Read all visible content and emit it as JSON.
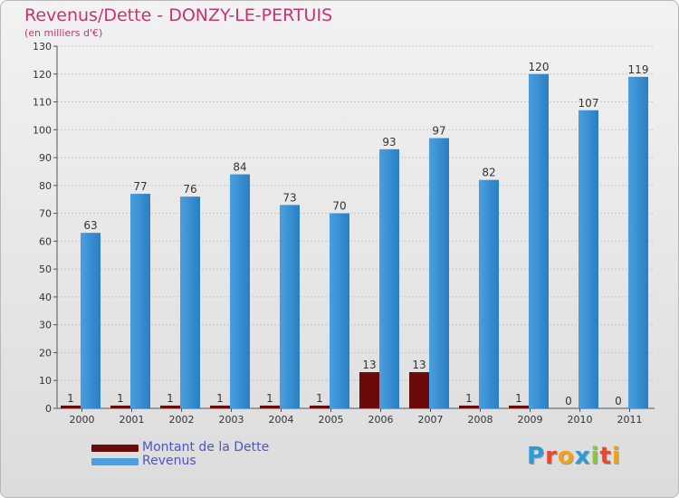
{
  "title": "Revenus/Dette - DONZY-LE-PERTUIS",
  "subtitle": "(en milliers d'€)",
  "logo": {
    "text": "Proxiti",
    "letters": [
      {
        "char": "P",
        "color": "#2f9bd6"
      },
      {
        "char": "r",
        "color": "#e8482f"
      },
      {
        "char": "o",
        "color": "#f0a31a"
      },
      {
        "char": "x",
        "color": "#2f9bd6"
      },
      {
        "char": "i",
        "color": "#8cc63e"
      },
      {
        "char": "t",
        "color": "#e8482f"
      },
      {
        "char": "i",
        "color": "#f0a31a"
      }
    ]
  },
  "colors": {
    "dette": "#6b0a0a",
    "revenus": "#4a9fe0",
    "revenus_dark": "#2a7fc4",
    "grid": "#c6c6c6",
    "axis": "#555555"
  },
  "chart_data": {
    "type": "bar",
    "title": "Revenus/Dette - DONZY-LE-PERTUIS",
    "subtitle": "(en milliers d'€)",
    "categories": [
      "2000",
      "2001",
      "2002",
      "2003",
      "2004",
      "2005",
      "2006",
      "2007",
      "2008",
      "2009",
      "2010",
      "2011"
    ],
    "series": [
      {
        "name": "Montant de la Dette",
        "values": [
          1,
          1,
          1,
          1,
          1,
          1,
          13,
          13,
          1,
          1,
          0,
          0
        ]
      },
      {
        "name": "Revenus",
        "values": [
          63,
          77,
          76,
          84,
          73,
          70,
          93,
          97,
          82,
          120,
          107,
          119
        ]
      }
    ],
    "ylim": [
      0,
      130
    ],
    "yticks": [
      0,
      10,
      20,
      30,
      40,
      50,
      60,
      70,
      80,
      90,
      100,
      110,
      120,
      130
    ],
    "grid": true,
    "legend": "bottom-left"
  }
}
